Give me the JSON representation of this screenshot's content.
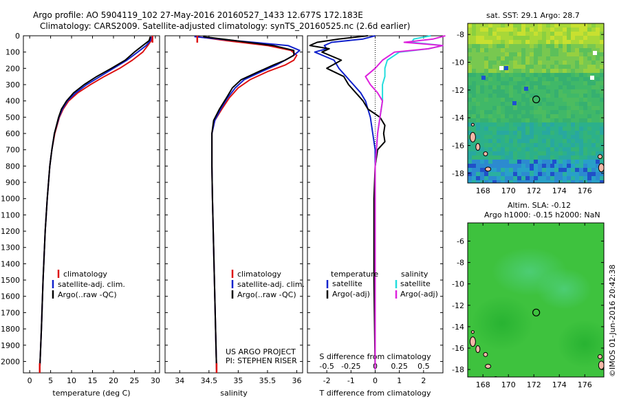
{
  "header": {
    "line1": "Argo profile: AO 5904119_102 27-May-2016 20160527_1433 12.677S 172.183E",
    "line2": "Climatology: CARS2009. Satellite-adjusted climatology: synTS_20160525.nc (2.6d earlier)"
  },
  "credit": "©IMOS 01-Jun-2016 20:42:38",
  "project_lines": [
    "US ARGO PROJECT",
    "PI: STEPHEN RISER"
  ],
  "colors": {
    "climatology": "#dd1111",
    "satellite_temp": "#1122cc",
    "argo_temp": "#000000",
    "satellite_sal": "#22dddd",
    "argo_sal": "#dd22dd"
  },
  "legend_profile": [
    "climatology",
    "satellite-adj. clim.",
    "Argo(..raw -QC)"
  ],
  "legend_diff": {
    "temp_title": "temperature",
    "sal_title": "salinity",
    "satellite": "satellite",
    "argo": "Argo(-adj)"
  },
  "chart_data": [
    {
      "type": "line",
      "id": "temperature-profile",
      "xlabel": "temperature (deg C)",
      "ylabel": "",
      "xlim": [
        -1.5,
        31
      ],
      "ylim": [
        2070,
        0
      ],
      "xticks": [
        0,
        5,
        10,
        15,
        20,
        25,
        30
      ],
      "yticks": [
        0,
        100,
        200,
        300,
        400,
        500,
        600,
        700,
        800,
        900,
        1000,
        1100,
        1200,
        1300,
        1400,
        1500,
        1600,
        1700,
        1800,
        1900,
        2000
      ],
      "series": [
        {
          "name": "climatology",
          "depth": [
            5,
            30,
            60,
            100,
            150,
            200,
            250,
            300,
            350,
            400,
            450,
            500,
            600,
            700,
            800,
            1000,
            1200,
            1500,
            1800,
            2050
          ],
          "values": [
            29.3,
            29.0,
            28.2,
            27.0,
            24.5,
            21.5,
            17.8,
            14.5,
            11.5,
            9.3,
            8.0,
            7.1,
            6.0,
            5.3,
            4.8,
            4.2,
            3.7,
            3.2,
            2.8,
            2.4
          ]
        },
        {
          "name": "satellite-adj. clim.",
          "depth": [
            5,
            30,
            60,
            100,
            150,
            200,
            250,
            300,
            350,
            400,
            450,
            500,
            600,
            700,
            800,
            1000,
            1200,
            1500,
            1800,
            2050
          ],
          "values": [
            29.0,
            28.8,
            27.8,
            25.8,
            23.2,
            20.0,
            16.8,
            13.6,
            11.0,
            9.0,
            7.8,
            7.0,
            5.9,
            5.3,
            4.8,
            4.2,
            3.7,
            3.2,
            2.8,
            2.4
          ]
        },
        {
          "name": "Argo(..raw -QC)",
          "depth": [
            5,
            30,
            60,
            100,
            150,
            200,
            250,
            300,
            350,
            400,
            450,
            500,
            600,
            700,
            800,
            1000,
            1200,
            1500,
            1800,
            2050
          ],
          "values": [
            28.8,
            28.5,
            27.0,
            25.0,
            22.8,
            19.5,
            16.0,
            13.0,
            10.5,
            8.8,
            7.6,
            6.9,
            5.9,
            5.3,
            4.8,
            4.2,
            3.7,
            3.2,
            2.8,
            2.4
          ]
        }
      ]
    },
    {
      "type": "line",
      "id": "salinity-profile",
      "xlabel": "salinity",
      "ylabel": "",
      "xlim": [
        33.75,
        36.1
      ],
      "ylim": [
        2070,
        0
      ],
      "xticks": [
        34,
        34.5,
        35,
        35.5,
        36
      ],
      "series": [
        {
          "name": "climatology",
          "depth": [
            5,
            30,
            60,
            90,
            120,
            150,
            180,
            220,
            270,
            320,
            380,
            450,
            520,
            600,
            800,
            1000,
            1300,
            1600,
            1900,
            2050
          ],
          "values": [
            34.3,
            34.8,
            35.5,
            35.9,
            36.0,
            35.95,
            35.8,
            35.5,
            35.2,
            35.0,
            34.85,
            34.72,
            34.6,
            34.55,
            34.55,
            34.56,
            34.58,
            34.6,
            34.62,
            34.63
          ]
        },
        {
          "name": "satellite-adj. clim.",
          "depth": [
            5,
            30,
            60,
            90,
            120,
            150,
            180,
            220,
            270,
            320,
            380,
            450,
            520,
            600,
            800,
            1000,
            1300,
            1600,
            1900,
            2050
          ],
          "values": [
            34.25,
            34.95,
            35.85,
            36.05,
            35.95,
            35.8,
            35.65,
            35.4,
            35.1,
            34.95,
            34.82,
            34.7,
            34.6,
            34.55,
            34.55,
            34.56,
            34.58,
            34.6,
            34.62,
            34.63
          ]
        },
        {
          "name": "Argo(..raw -QC)",
          "depth": [
            5,
            30,
            60,
            90,
            120,
            150,
            180,
            220,
            270,
            320,
            380,
            450,
            520,
            600,
            800,
            1000,
            1300,
            1600,
            1900,
            2050
          ],
          "values": [
            34.4,
            34.95,
            35.6,
            35.95,
            35.95,
            35.8,
            35.6,
            35.35,
            35.05,
            34.9,
            34.8,
            34.68,
            34.58,
            34.55,
            34.55,
            34.56,
            34.58,
            34.6,
            34.62,
            34.63
          ]
        }
      ]
    },
    {
      "type": "line",
      "id": "difference-profile",
      "xlabel": "T difference from climatology",
      "xlabel_top": "S difference from climatology",
      "xlim": [
        -2.8,
        2.8
      ],
      "ylim": [
        2070,
        0
      ],
      "xticks": [
        -2,
        -1,
        0,
        1,
        2
      ],
      "xticks_top_labels": [
        "-0.5",
        "-0.25",
        "0",
        "0.25",
        "0.5"
      ],
      "xticks_top_positions": [
        -2,
        -1,
        0,
        1,
        2
      ],
      "series": [
        {
          "name": "temperature satellite",
          "depth": [
            0,
            20,
            40,
            60,
            80,
            100,
            150,
            200,
            250,
            300,
            350,
            400,
            450,
            500,
            550,
            600,
            650,
            700,
            800,
            1000,
            1500,
            2050
          ],
          "values": [
            0,
            -0.5,
            -1.8,
            -2.1,
            -2.0,
            -2.5,
            -1.7,
            -1.5,
            -1.2,
            -0.9,
            -0.6,
            -0.4,
            -0.3,
            -0.2,
            -0.15,
            -0.1,
            -0.05,
            0,
            0,
            0,
            0,
            0
          ]
        },
        {
          "name": "temperature Argo(-adj)",
          "depth": [
            0,
            20,
            40,
            60,
            80,
            100,
            150,
            200,
            250,
            300,
            350,
            400,
            450,
            500,
            550,
            600,
            650,
            700,
            800,
            1000,
            1500,
            2050
          ],
          "values": [
            -0.3,
            -1.5,
            -2.4,
            -2.7,
            -1.9,
            -2.2,
            -1.4,
            -2.0,
            -1.3,
            -1.1,
            -0.8,
            -0.5,
            -0.3,
            0.2,
            0.4,
            0.35,
            0.4,
            0.1,
            0,
            -0.05,
            -0.05,
            0
          ]
        },
        {
          "name": "salinity satellite",
          "depth": [
            0,
            20,
            40,
            60,
            80,
            100,
            150,
            200,
            250,
            300,
            350,
            400,
            500,
            600,
            700,
            800,
            1000,
            1500,
            2050
          ],
          "values": [
            2.3,
            1.6,
            1.5,
            2.8,
            2.2,
            1.0,
            0.5,
            0.4,
            0.4,
            0.3,
            0.3,
            0.3,
            0.2,
            0.1,
            0.05,
            0,
            0,
            0,
            0
          ]
        },
        {
          "name": "salinity Argo(-adj)",
          "depth": [
            0,
            20,
            40,
            60,
            80,
            100,
            150,
            200,
            250,
            300,
            350,
            400,
            500,
            600,
            700,
            800,
            1000,
            1500,
            2050
          ],
          "values": [
            2.9,
            2.4,
            1.2,
            2.8,
            2.2,
            0.8,
            0.3,
            0.0,
            -0.4,
            -0.2,
            0.1,
            0.3,
            0.2,
            0.1,
            0.05,
            0,
            0,
            0,
            0
          ]
        }
      ]
    },
    {
      "type": "heatmap",
      "id": "sst-map",
      "title": "sat. SST: 29.1  Argo: 28.7",
      "xlim": [
        166.8,
        177.5
      ],
      "ylim": [
        -18.7,
        -7.2
      ],
      "xticks": [
        168,
        170,
        172,
        174,
        176
      ],
      "yticks": [
        -8,
        -10,
        -12,
        -14,
        -16,
        -18
      ],
      "marker": {
        "lon": 172.183,
        "lat": -12.677
      },
      "colormap": "jet"
    },
    {
      "type": "heatmap",
      "id": "sla-map",
      "title": "Altim. SLA: -0.12",
      "subtitle": "Argo h1000: -0.15 h2000: NaN",
      "xlim": [
        166.8,
        177.5
      ],
      "ylim": [
        -18.7,
        -4.3
      ],
      "xticks": [
        168,
        170,
        172,
        174,
        176
      ],
      "yticks": [
        -6,
        -8,
        -10,
        -12,
        -14,
        -16,
        -18
      ],
      "marker": {
        "lon": 172.183,
        "lat": -12.677
      },
      "colormap": "jet"
    }
  ]
}
